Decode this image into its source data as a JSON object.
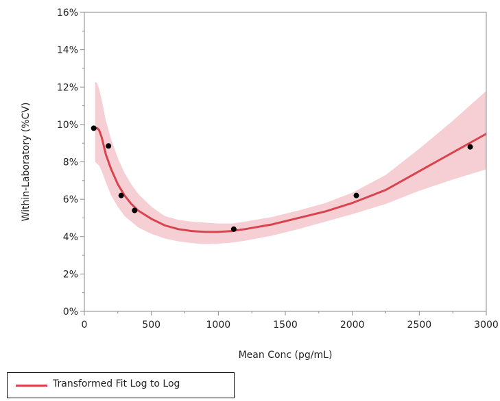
{
  "chart_data": {
    "type": "line",
    "xlabel": "Mean Conc (pg/mL)",
    "ylabel": "Within-Laboratory (%CV)",
    "xlim": [
      0,
      3000
    ],
    "ylim": [
      0,
      16
    ],
    "x_ticks": [
      0,
      500,
      1000,
      1500,
      2000,
      2500,
      3000
    ],
    "x_tick_labels": [
      "0",
      "500",
      "1000",
      "1500",
      "2000",
      "2500",
      "3000"
    ],
    "y_ticks": [
      0,
      2,
      4,
      6,
      8,
      10,
      12,
      14,
      16
    ],
    "y_tick_labels": [
      "0%",
      "2%",
      "4%",
      "6%",
      "8%",
      "10%",
      "12%",
      "14%",
      "16%"
    ],
    "grid": false,
    "legend_position": "bottom-left",
    "points": {
      "x": [
        70,
        180,
        275,
        375,
        1115,
        2030,
        2880
      ],
      "y": [
        9.8,
        8.85,
        6.2,
        5.4,
        4.4,
        6.2,
        8.8
      ]
    },
    "series": [
      {
        "name": "Transformed Fit Log to Log",
        "color": "#d9434e",
        "x": [
          80,
          95,
          110,
          130,
          160,
          200,
          250,
          300,
          350,
          400,
          500,
          600,
          700,
          800,
          900,
          1000,
          1100,
          1200,
          1400,
          1600,
          1800,
          2000,
          2250,
          2500,
          2750,
          3000
        ],
        "y": [
          9.75,
          9.8,
          9.7,
          9.3,
          8.4,
          7.6,
          6.8,
          6.2,
          5.75,
          5.4,
          4.95,
          4.6,
          4.4,
          4.3,
          4.25,
          4.25,
          4.3,
          4.4,
          4.65,
          5.0,
          5.35,
          5.8,
          6.5,
          7.5,
          8.5,
          9.5
        ],
        "band_upper": [
          12.3,
          12.2,
          11.9,
          11.3,
          10.2,
          9.2,
          8.2,
          7.4,
          6.8,
          6.3,
          5.6,
          5.1,
          4.9,
          4.8,
          4.75,
          4.7,
          4.7,
          4.8,
          5.05,
          5.4,
          5.8,
          6.35,
          7.3,
          8.7,
          10.2,
          11.8
        ],
        "band_lower": [
          8.0,
          7.9,
          7.8,
          7.5,
          6.9,
          6.2,
          5.6,
          5.1,
          4.8,
          4.5,
          4.15,
          3.9,
          3.75,
          3.65,
          3.6,
          3.62,
          3.68,
          3.78,
          4.05,
          4.4,
          4.8,
          5.2,
          5.75,
          6.45,
          7.05,
          7.6
        ]
      }
    ],
    "band_color": "#f5cfd4",
    "point_color": "#000000"
  }
}
